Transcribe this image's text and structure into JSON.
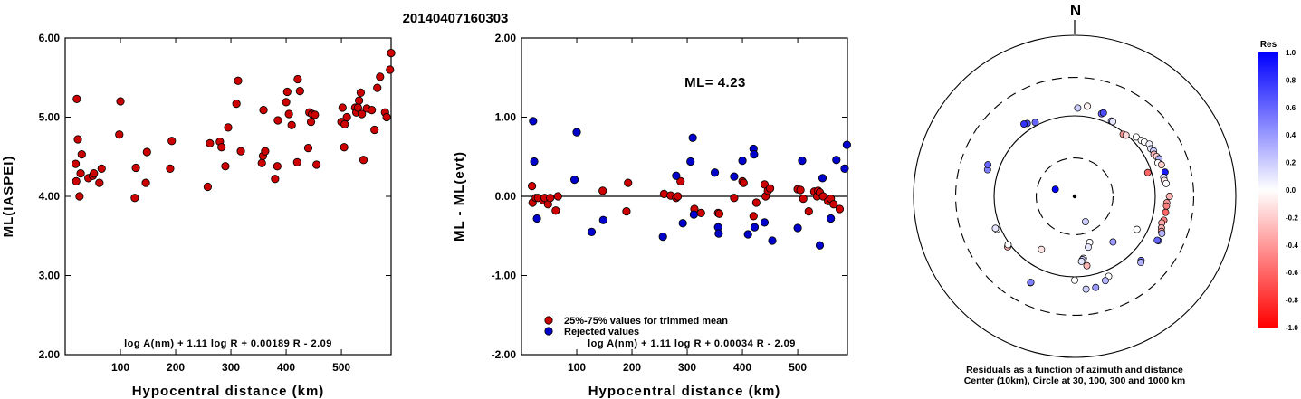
{
  "title": "20140407160303",
  "chart_data": [
    {
      "type": "scatter",
      "xlabel": "Hypocentral distance (km)",
      "ylabel": "ML(IASPEI)",
      "xlim": [
        0,
        590
      ],
      "ylim": [
        2.0,
        6.0
      ],
      "xticks": [
        "100",
        "200",
        "300",
        "400",
        "500"
      ],
      "xtick_values": [
        100,
        200,
        300,
        400,
        500
      ],
      "yticks": [
        "2.00",
        "3.00",
        "4.00",
        "5.00",
        "6.00"
      ],
      "ytick_values": [
        2.0,
        3.0,
        4.0,
        5.0,
        6.0
      ],
      "formula": "log A(nm) + 1.11 log R + 0.00189 R - 2.09",
      "series": [
        {
          "color": "#cc0000",
          "x": [
            19,
            20,
            21,
            23,
            26,
            28,
            30,
            42,
            50,
            52,
            62,
            66,
            98,
            100,
            126,
            128,
            146,
            148,
            190,
            193,
            258,
            262,
            280,
            283,
            290,
            295,
            310,
            313,
            318,
            356,
            358,
            359,
            362,
            380,
            384,
            385,
            400,
            402,
            405,
            410,
            420,
            421,
            425,
            440,
            442,
            445,
            447,
            452,
            455,
            500,
            502,
            505,
            506,
            510,
            525,
            527,
            530,
            532,
            535,
            537,
            540,
            546,
            555,
            560,
            565,
            570,
            579,
            582,
            588,
            590
          ],
          "y": [
            4.41,
            4.19,
            5.23,
            4.72,
            4.0,
            4.29,
            4.53,
            4.23,
            4.26,
            4.29,
            4.17,
            4.35,
            4.78,
            5.2,
            3.98,
            4.36,
            4.17,
            4.56,
            4.35,
            4.7,
            4.12,
            4.67,
            4.69,
            4.62,
            4.38,
            4.87,
            5.17,
            5.46,
            4.57,
            4.42,
            4.51,
            5.09,
            4.57,
            4.22,
            4.38,
            4.96,
            5.19,
            5.32,
            5.04,
            4.9,
            4.43,
            5.48,
            5.33,
            4.61,
            5.06,
            4.94,
            5.04,
            5.03,
            4.4,
            4.94,
            5.12,
            4.62,
            4.91,
            5.0,
            5.12,
            5.06,
            5.12,
            5.21,
            5.31,
            5.04,
            4.46,
            5.11,
            5.09,
            4.84,
            5.37,
            5.51,
            5.06,
            5.0,
            5.6,
            5.81
          ]
        }
      ]
    },
    {
      "type": "scatter",
      "xlabel": "Hypocentral distance (km)",
      "ylabel": "ML - ML(evt)",
      "xlim": [
        0,
        590
      ],
      "ylim": [
        -2.0,
        2.0
      ],
      "xticks": [
        "100",
        "200",
        "300",
        "400",
        "500"
      ],
      "xtick_values": [
        100,
        200,
        300,
        400,
        500
      ],
      "yticks": [
        "-2.00",
        "-1.00",
        "0.00",
        "1.00",
        "2.00"
      ],
      "ytick_values": [
        -2.0,
        -1.0,
        0.0,
        1.0,
        2.0
      ],
      "zero_line": 0.0,
      "annotation": "ML= 4.23",
      "legend": [
        {
          "label": "25%-75% values for trimmed mean",
          "color": "#cc0000"
        },
        {
          "label": "Rejected values",
          "color": "#0000cc"
        }
      ],
      "formula": "log A(nm) + 1.11 log R + 0.00034 R - 2.09",
      "series": [
        {
          "name": "25%-75% values for trimmed mean",
          "color": "#cc0000",
          "x": [
            19,
            20,
            26,
            30,
            40,
            42,
            48,
            52,
            62,
            66,
            147,
            190,
            193,
            258,
            270,
            280,
            283,
            288,
            313,
            325,
            356,
            358,
            385,
            400,
            402,
            420,
            425,
            440,
            442,
            446,
            450,
            500,
            505,
            510,
            520,
            530,
            535,
            537,
            540,
            546,
            555,
            560,
            565,
            576
          ],
          "y": [
            0.13,
            -0.08,
            -0.02,
            -0.02,
            -0.05,
            -0.02,
            -0.1,
            -0.02,
            -0.18,
            0.0,
            0.07,
            -0.19,
            0.17,
            0.03,
            0.01,
            -0.02,
            0.0,
            0.19,
            -0.16,
            -0.21,
            -0.21,
            -0.22,
            -0.02,
            0.19,
            0.17,
            -0.25,
            -0.08,
            0.15,
            0.0,
            0.07,
            0.1,
            0.09,
            0.08,
            -0.03,
            -0.19,
            0.06,
            0.0,
            0.07,
            0.05,
            0.0,
            -0.06,
            -0.03,
            -0.1,
            -0.16
          ]
        },
        {
          "name": "Rejected values",
          "color": "#0000cc",
          "x": [
            21,
            23,
            28,
            96,
            100,
            127,
            148,
            256,
            280,
            292,
            306,
            310,
            312,
            350,
            356,
            357,
            385,
            400,
            410,
            420,
            421,
            422,
            440,
            454,
            500,
            508,
            540,
            545,
            560,
            570,
            585,
            589
          ],
          "y": [
            0.95,
            0.44,
            -0.28,
            0.21,
            0.81,
            -0.45,
            -0.3,
            -0.51,
            0.26,
            -0.34,
            0.44,
            0.74,
            -0.23,
            0.3,
            -0.39,
            -0.47,
            0.25,
            0.45,
            -0.48,
            0.6,
            0.53,
            -0.39,
            -0.33,
            -0.56,
            -0.4,
            0.45,
            -0.62,
            0.23,
            -0.28,
            0.46,
            0.35,
            0.65
          ]
        }
      ]
    },
    {
      "type": "scatter",
      "subtype": "polar",
      "north_label": "N",
      "caption_line1": "Residuals as a function of azimuth and distance",
      "caption_line2": "Center (10km), Circle at 30, 100, 300 and 1000 km",
      "rings_km": [
        10,
        30,
        100,
        300,
        1000
      ],
      "colorbar": {
        "title": "Res",
        "ticks": [
          "1.0",
          "0.8",
          "0.6",
          "0.4",
          "0.2",
          "0.0",
          "-0.2",
          "-0.4",
          "-0.6",
          "-0.8",
          "-1.0"
        ],
        "tick_values": [
          1.0,
          0.8,
          0.6,
          0.4,
          0.2,
          0.0,
          -0.2,
          -0.4,
          -0.6,
          -0.8,
          -1.0
        ],
        "high_color": "#0000ff",
        "mid_color": "#ffffff",
        "low_color": "#ff0000"
      },
      "points": {
        "azimuth_deg": [
          -28,
          -33,
          -35,
          18,
          19,
          2,
          8,
          26,
          27,
          38,
          40,
          72,
          46,
          50,
          52,
          55,
          58,
          60,
          62,
          64,
          66,
          68,
          70,
          75,
          78,
          80,
          82,
          90,
          94,
          96,
          100,
          105,
          107,
          110,
          112,
          113,
          118,
          118,
          134,
          135,
          157,
          160,
          167,
          173,
          180,
          -153,
          -153,
          -127,
          -126,
          -113,
          -112,
          -73,
          -70,
          157,
          162,
          165,
          172,
          173,
          174,
          170,
          118,
          140,
          -148,
          -70
        ],
        "distance_km": [
          110,
          120,
          125,
          120,
          125,
          125,
          135,
          110,
          110,
          95,
          98,
          90,
          115,
          120,
          125,
          135,
          130,
          135,
          130,
          135,
          140,
          130,
          140,
          145,
          135,
          135,
          140,
          150,
          140,
          140,
          140,
          140,
          135,
          140,
          145,
          150,
          150,
          145,
          140,
          145,
          120,
          130,
          145,
          145,
          110,
          160,
          158,
          110,
          105,
          112,
          115,
          135,
          140,
          22,
          40,
          45,
          60,
          62,
          65,
          75,
          75,
          55,
          60,
          18
        ],
        "residual": [
          0.6,
          0.7,
          0.8,
          0.6,
          0.7,
          0.2,
          -0.05,
          0.3,
          0.1,
          -0.4,
          -0.15,
          -0.6,
          0.0,
          0.0,
          0.0,
          0.05,
          0.1,
          0.2,
          -0.3,
          -0.2,
          0.3,
          0.0,
          -0.2,
          0.9,
          0.1,
          -0.1,
          0.0,
          -0.3,
          -0.4,
          -0.5,
          -0.6,
          -0.5,
          -0.35,
          -0.3,
          -0.4,
          0.3,
          0.5,
          0.6,
          0.5,
          0.3,
          0.0,
          0.3,
          0.4,
          0.2,
          0.0,
          0.4,
          0.5,
          -0.3,
          0.0,
          0.0,
          0.1,
          0.5,
          0.6,
          0.2,
          0.0,
          0.1,
          0.0,
          0.2,
          0.1,
          -0.3,
          0.0,
          0.4,
          -0.1,
          1.0
        ]
      }
    }
  ]
}
